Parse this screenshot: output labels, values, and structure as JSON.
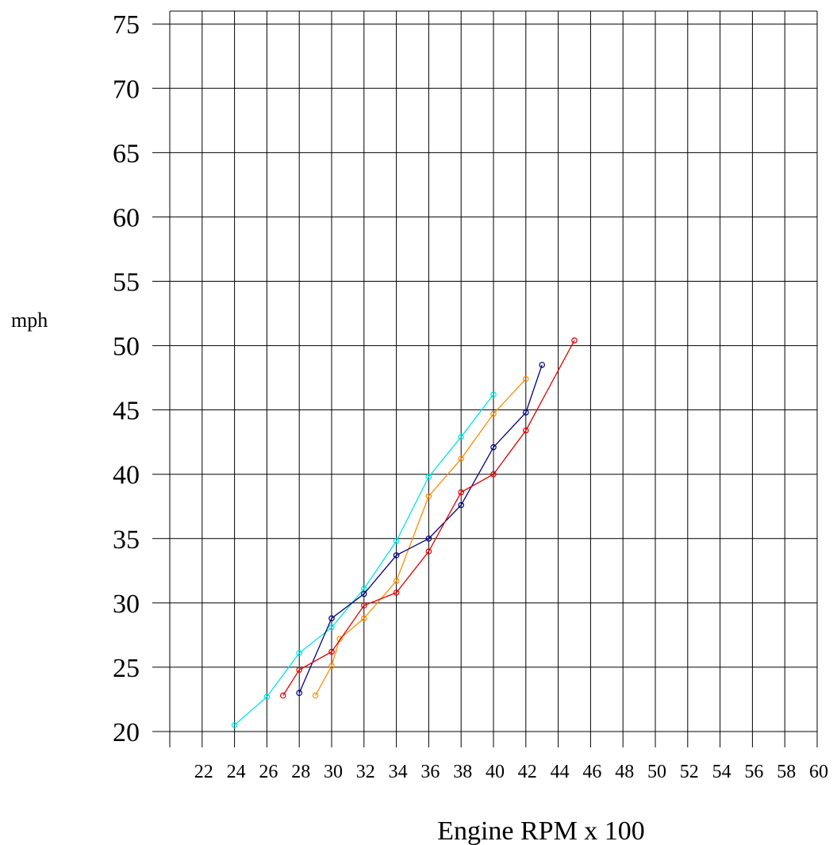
{
  "chart_data": {
    "type": "line",
    "title": "",
    "xlabel": "Engine RPM x 100",
    "ylabel": "mph",
    "xlim": [
      20,
      60
    ],
    "ylim": [
      20,
      76
    ],
    "grid": true,
    "legend": "none",
    "x_ticks": [
      22,
      24,
      26,
      28,
      30,
      32,
      34,
      36,
      38,
      40,
      42,
      44,
      46,
      48,
      50,
      52,
      54,
      56,
      58,
      60
    ],
    "y_ticks": [
      20,
      25,
      30,
      35,
      40,
      45,
      50,
      55,
      60,
      65,
      70,
      75
    ],
    "series": [
      {
        "color": "#00e5e5",
        "x": [
          24,
          26,
          28,
          30,
          32,
          34,
          36,
          38,
          40
        ],
        "y": [
          20.5,
          22.7,
          26.1,
          28.1,
          31.1,
          34.8,
          39.8,
          42.9,
          46.2
        ]
      },
      {
        "color": "#ff8c00",
        "x": [
          29,
          30,
          30.5,
          32,
          34,
          36,
          38,
          40,
          42
        ],
        "y": [
          22.8,
          25.1,
          27.2,
          28.8,
          31.7,
          38.3,
          41.2,
          44.7,
          47.4
        ]
      },
      {
        "color": "#00007f",
        "x": [
          28,
          30,
          32,
          34,
          36,
          38,
          40,
          42,
          43
        ],
        "y": [
          23.0,
          28.8,
          30.7,
          33.7,
          35.0,
          37.6,
          42.1,
          44.8,
          48.5
        ]
      },
      {
        "color": "#e00000",
        "x": [
          27,
          28,
          30,
          32,
          34,
          36,
          38,
          40,
          42,
          45
        ],
        "y": [
          22.8,
          24.8,
          26.2,
          29.8,
          30.8,
          34.0,
          38.6,
          40.0,
          43.4,
          50.4
        ]
      }
    ]
  }
}
